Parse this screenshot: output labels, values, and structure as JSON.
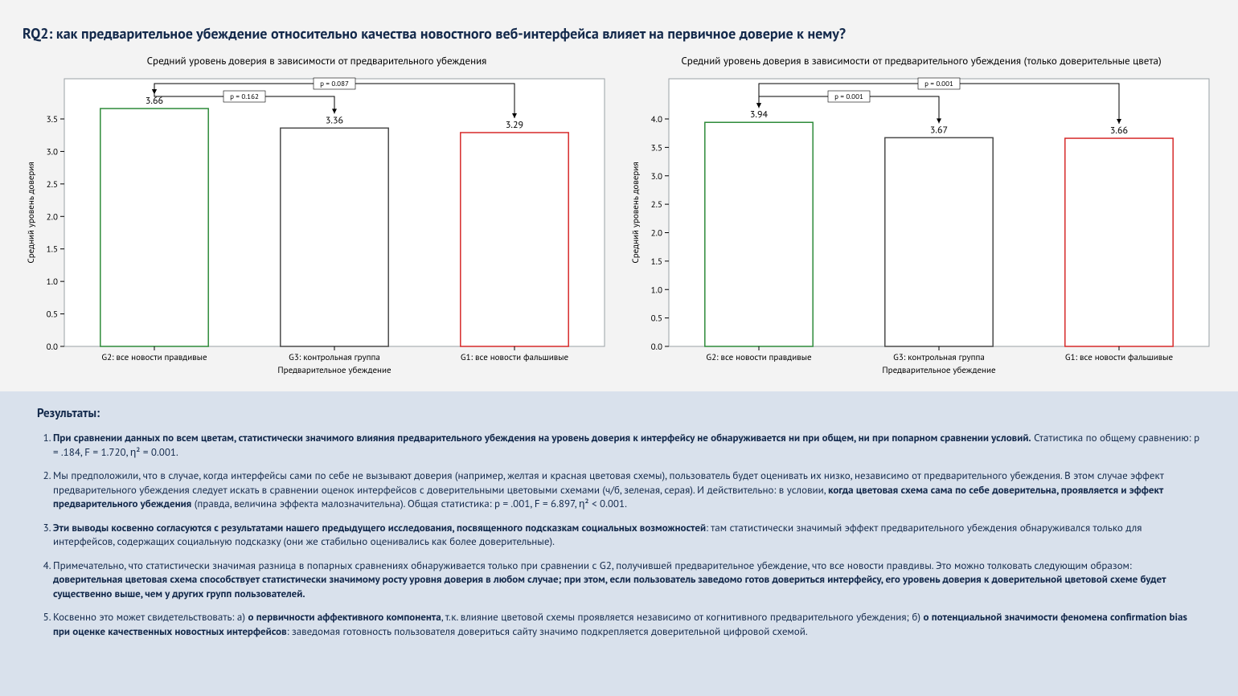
{
  "header": "RQ2: как предварительное убеждение относительно качества новостного веб-интерфейса влияет на первичное доверие к нему?",
  "chart_left": {
    "type": "bar",
    "title": "Средний уровень доверия в зависимости от предварительного убеждения",
    "categories": [
      "G2: все новости правдивые",
      "G3: контрольная группа",
      "G1: все новости фальшивые"
    ],
    "values": [
      3.66,
      3.36,
      3.29
    ],
    "value_labels": [
      "3.66",
      "3.36",
      "3.29"
    ],
    "bar_colors": [
      "#2e8b3a",
      "#4a4a4a",
      "#d62a2a"
    ],
    "bar_fill": "none",
    "bar_stroke_width": 1.5,
    "bar_width": 0.6,
    "ylabel": "Средний уровень доверия",
    "xlabel": "Предварительное убеждение",
    "ylim": [
      0.0,
      3.5
    ],
    "yticks": [
      0.0,
      0.5,
      1.0,
      1.5,
      2.0,
      2.5,
      3.0,
      3.5
    ],
    "background_color": "#ffffff",
    "border_color": "#9aa0a6",
    "tick_fontsize": 11,
    "label_fontsize": 11,
    "title_fontsize": 13,
    "pvals": [
      {
        "from": 0,
        "to": 1,
        "label": "p = 0.162",
        "level": 1
      },
      {
        "from": 0,
        "to": 2,
        "label": "p = 0.087",
        "level": 0
      }
    ]
  },
  "chart_right": {
    "type": "bar",
    "title": "Средний уровень доверия в зависимости от предварительного убеждения (только доверительные цвета)",
    "categories": [
      "G2: все новости правдивые",
      "G3: контрольная группа",
      "G1: все новости фальшивые"
    ],
    "values": [
      3.94,
      3.67,
      3.66
    ],
    "value_labels": [
      "3.94",
      "3.67",
      "3.66"
    ],
    "bar_colors": [
      "#2e8b3a",
      "#4a4a4a",
      "#d62a2a"
    ],
    "bar_fill": "none",
    "bar_stroke_width": 1.5,
    "bar_width": 0.6,
    "ylabel": "Средний уровень доверия",
    "xlabel": "Предварительное убеждение",
    "ylim": [
      0.0,
      4.0
    ],
    "yticks": [
      0.0,
      0.5,
      1.0,
      1.5,
      2.0,
      2.5,
      3.0,
      3.5,
      4.0
    ],
    "background_color": "#ffffff",
    "border_color": "#9aa0a6",
    "tick_fontsize": 11,
    "label_fontsize": 11,
    "title_fontsize": 13,
    "pvals": [
      {
        "from": 0,
        "to": 1,
        "label": "p = 0.001",
        "level": 1
      },
      {
        "from": 0,
        "to": 2,
        "label": "p = 0.001",
        "level": 0
      }
    ]
  },
  "results": {
    "heading": "Результаты:",
    "items": [
      {
        "html": "<strong>При сравнении данных по всем цветам, статистически значимого влияния предварительного убеждения на уровень доверия к интерфейсу не обнаруживается ни при общем, ни при попарном сравнении условий.</strong> Статистика по общему сравнению: p = .184, F = 1.720, η² = 0.001."
      },
      {
        "html": "Мы предположили, что в случае, когда интерфейсы сами по себе не вызывают доверия (например, желтая и красная цветовая схемы), пользователь будет оценивать их низко, независимо от предварительного убеждения. В этом случае эффект предварительного убеждения следует искать в сравнении оценок интерфейсов с доверительными цветовыми схемами (ч/б, зеленая, серая). И действительно: в условии, <strong>когда цветовая схема сама по себе доверительна, проявляется и эффект предварительного убеждения</strong> (правда, величина эффекта малозначительна). Общая статистика: p = .001, F = 6.897, η² < 0.001."
      },
      {
        "html": "<strong>Эти выводы косвенно согласуются с результатами нашего предыдущего исследования, посвященного подсказкам социальных возможностей</strong>: там статистически значимый эффект предварительного убеждения обнаруживался только для интерфейсов, содержащих социальную подсказку (они же стабильно оценивались как более доверительные)."
      },
      {
        "html": "Примечательно, что статистически значимая разница в попарных сравнениях обнаруживается только при сравнении с G2, получившей предварительное убеждение, что все новости правдивы. Это можно толковать следующим образом: <strong>доверительная цветовая схема способствует статистически значимому росту уровня доверия в любом случае; при этом, если пользователь заведомо готов довериться интерфейсу, его уровень доверия к доверительной цветовой схеме будет существенно выше, чем у других групп пользователей.</strong>"
      },
      {
        "html": "Косвенно это может свидетельствовать: а) <strong>о первичности аффективного компонента</strong>, т.к. влияние цветовой схемы проявляется независимо от когнитивного предварительного убеждения; б) <strong>о потенциальной значимости феномена confirmation bias при оценке качественных новостных интерфейсов</strong>: заведомая готовность пользователя довериться сайту значимо подкрепляется доверительной цифровой схемой."
      }
    ]
  }
}
